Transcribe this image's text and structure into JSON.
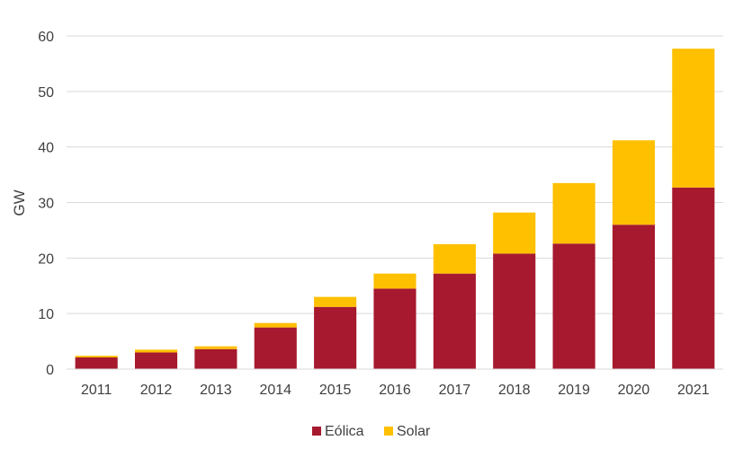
{
  "chart_data": {
    "type": "bar",
    "stacked": true,
    "categories": [
      "2011",
      "2012",
      "2013",
      "2014",
      "2015",
      "2016",
      "2017",
      "2018",
      "2019",
      "2020",
      "2021"
    ],
    "series": [
      {
        "name": "Eólica",
        "color": "#a6192e",
        "values": [
          2.1,
          3.0,
          3.6,
          7.5,
          11.2,
          14.5,
          17.2,
          20.8,
          22.6,
          26.0,
          32.7
        ]
      },
      {
        "name": "Solar",
        "color": "#ffc000",
        "values": [
          0.3,
          0.5,
          0.5,
          0.8,
          1.8,
          2.7,
          5.3,
          7.4,
          10.9,
          15.2,
          25.0
        ]
      }
    ],
    "xlabel": "",
    "ylabel": "GW",
    "ylim": [
      0,
      60
    ],
    "yticks": [
      "0",
      "10",
      "20",
      "30",
      "40",
      "50",
      "60"
    ],
    "grid": true,
    "legend_position": "bottom"
  }
}
